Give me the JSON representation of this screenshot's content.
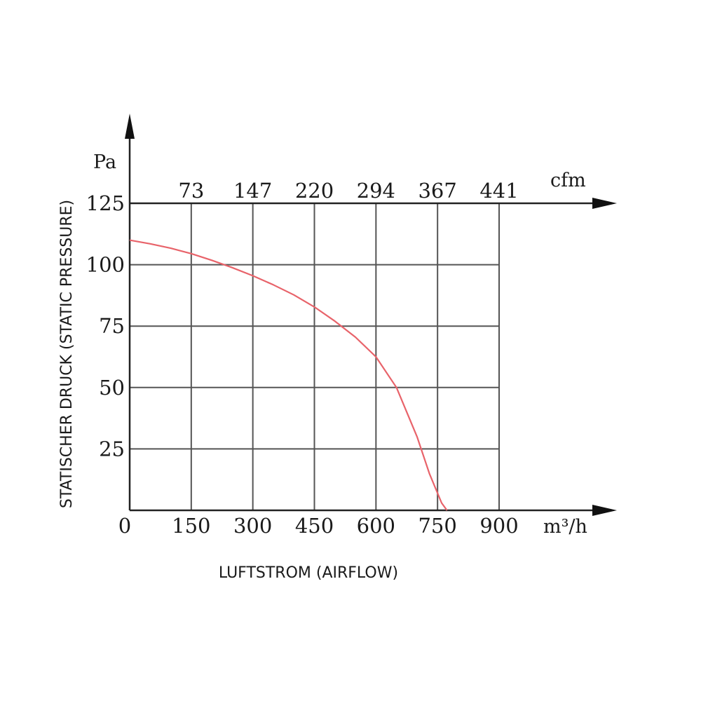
{
  "chart_data": {
    "type": "line",
    "xlabel": "LUFTSTROM (AIRFLOW)",
    "ylabel": "STATISCHER DRUCK (STATIC PRESSURE)",
    "x_unit": "m³/h",
    "y_unit": "Pa",
    "x2_unit": "cfm",
    "xlim": [
      0,
      900
    ],
    "ylim": [
      0,
      125
    ],
    "x_ticks": [
      "0",
      "150",
      "300",
      "450",
      "600",
      "750",
      "900"
    ],
    "y_ticks": [
      "25",
      "50",
      "75",
      "100",
      "125"
    ],
    "x2_ticks": [
      "73",
      "147",
      "220",
      "294",
      "367",
      "441"
    ],
    "grid": true,
    "series": [
      {
        "color": "#e8636a",
        "x": [
          0,
          50,
          100,
          150,
          200,
          250,
          300,
          350,
          400,
          450,
          500,
          550,
          600,
          650,
          700,
          730,
          760,
          773
        ],
        "y": [
          110,
          108.5,
          106.7,
          104.5,
          101.8,
          98.8,
          95.5,
          91.8,
          87.7,
          82.8,
          77,
          70.5,
          62.5,
          50,
          30,
          15,
          3,
          0
        ]
      }
    ]
  }
}
